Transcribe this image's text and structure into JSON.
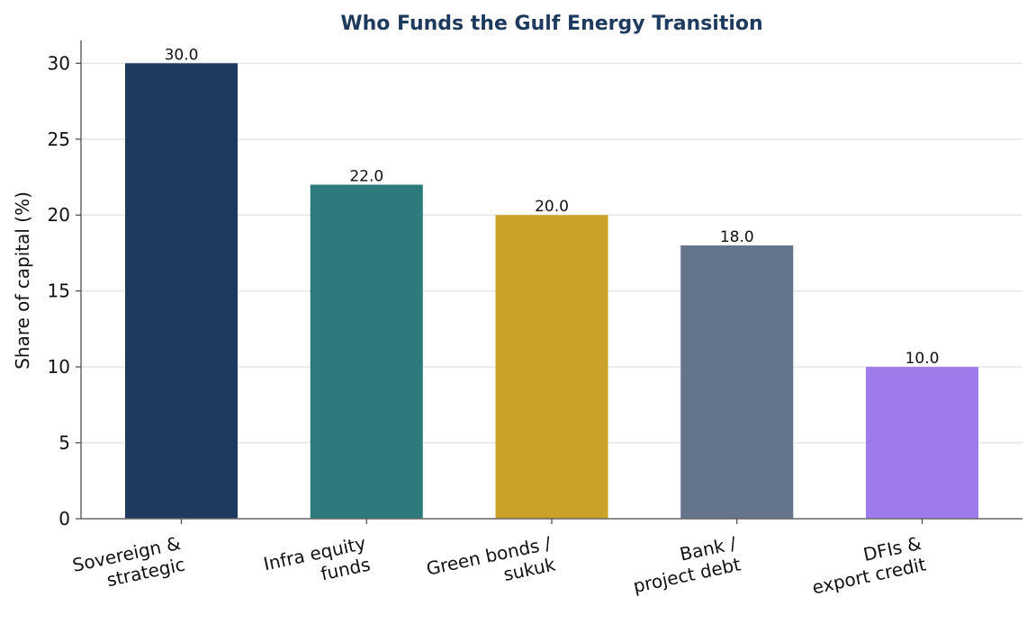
{
  "chart_data": {
    "type": "bar",
    "title": "Who Funds the Gulf Energy Transition",
    "xlabel": "",
    "ylabel": "Share of capital (%)",
    "categories": [
      [
        "Sovereign &",
        "strategic"
      ],
      [
        "Infra equity",
        "funds"
      ],
      [
        "Green bonds /",
        "sukuk"
      ],
      [
        "Bank /",
        "project debt"
      ],
      [
        "DFIs &",
        "export credit"
      ]
    ],
    "values": [
      30.0,
      22.0,
      20.0,
      18.0,
      10.0
    ],
    "data_labels": [
      "30.0",
      "22.0",
      "20.0",
      "18.0",
      "10.0"
    ],
    "colors": [
      "#1f3a5f",
      "#2c7a7b",
      "#c9a227",
      "#64748b",
      "#9f7aea"
    ],
    "title_color": "#1f3a5f",
    "ylim": [
      0,
      31.5
    ],
    "yticks": [
      0,
      5,
      10,
      15,
      20,
      25,
      30
    ],
    "grid": "horizontal",
    "legend": "none"
  }
}
